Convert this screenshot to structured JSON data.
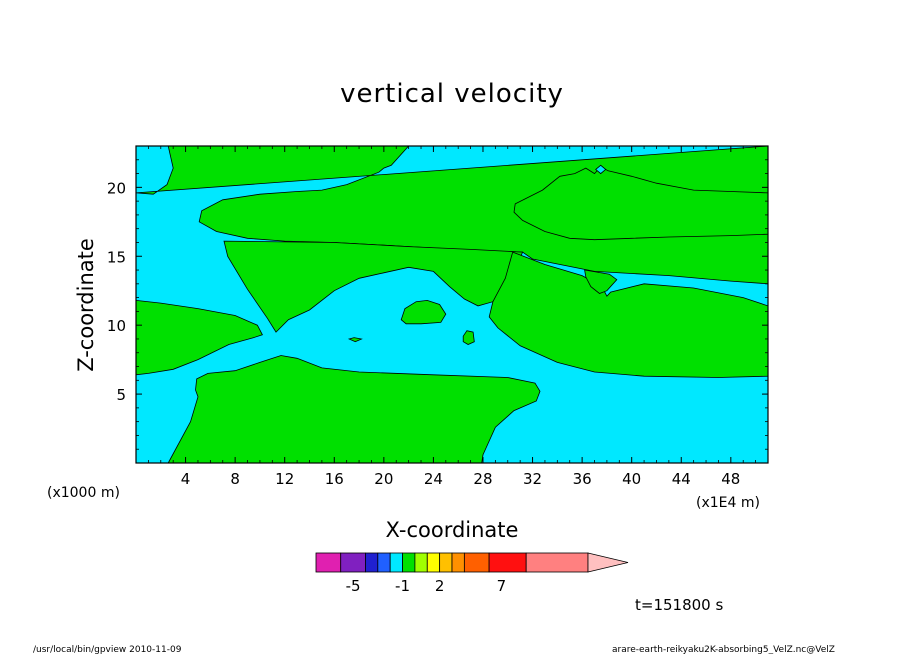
{
  "chart_data": {
    "type": "contour",
    "title": "vertical velocity",
    "xlabel": "X-coordinate",
    "ylabel": "Z-coordinate",
    "x_unit_left": "(x1000 m)",
    "x_unit_right": "(x1E4 m)",
    "xlim": [
      0,
      51
    ],
    "ylim": [
      0,
      23
    ],
    "x_ticks": [
      4,
      8,
      12,
      16,
      20,
      24,
      28,
      32,
      36,
      40,
      44,
      48
    ],
    "y_ticks": [
      5,
      10,
      15,
      20
    ],
    "time_label": "t=151800 s",
    "colorbar": {
      "tick_labels": [
        "-5",
        "-1",
        "2",
        "7"
      ],
      "tick_positions": [
        -5,
        -1,
        2,
        7
      ],
      "levels": [
        -8,
        -6,
        -4,
        -3,
        -2,
        -1,
        0,
        1,
        2,
        3,
        4,
        6,
        9,
        14
      ],
      "colors": [
        "#e020b0",
        "#8020c0",
        "#2020d0",
        "#2060ff",
        "#00e8ff",
        "#00e000",
        "#a0ff00",
        "#ffff00",
        "#ffc000",
        "#ff9000",
        "#ff6000",
        "#ff1010",
        "#ff8080",
        "#ffc0c0"
      ]
    },
    "fill_colors": {
      "negative": "#00e8ff",
      "positive": "#00e000"
    },
    "positive_regions": [
      {
        "name": "top-left",
        "points": [
          [
            0,
            19.6
          ],
          [
            1.4,
            19.5
          ],
          [
            2.5,
            20.2
          ],
          [
            3,
            21.4
          ],
          [
            2.6,
            23
          ],
          [
            22,
            23
          ],
          [
            20.6,
            21.6
          ],
          [
            20,
            21.4
          ],
          [
            19.6,
            21.1
          ],
          [
            17,
            20.2
          ],
          [
            15,
            19.8
          ],
          [
            13,
            19.7
          ],
          [
            10,
            19.5
          ],
          [
            7,
            19.1
          ],
          [
            5.3,
            18.3
          ],
          [
            5.1,
            17.5
          ],
          [
            6.5,
            16.8
          ],
          [
            9,
            16.3
          ],
          [
            12,
            16.1
          ],
          [
            16,
            16.0
          ],
          [
            22,
            15.7
          ],
          [
            28,
            15.4
          ],
          [
            31.2,
            15.3
          ],
          [
            32,
            14.8
          ],
          [
            37,
            13.9
          ],
          [
            43,
            13.6
          ],
          [
            48,
            13.2
          ],
          [
            51,
            13.0
          ],
          [
            51,
            23
          ]
        ]
      },
      {
        "name": "left-band",
        "points": [
          [
            0,
            11.8
          ],
          [
            2,
            11.6
          ],
          [
            5,
            11.2
          ],
          [
            8,
            10.7
          ],
          [
            9.8,
            10.0
          ],
          [
            10.2,
            9.3
          ],
          [
            9.5,
            9.1
          ],
          [
            7.5,
            8.6
          ],
          [
            5,
            7.5
          ],
          [
            3,
            6.8
          ],
          [
            1,
            6.5
          ],
          [
            0,
            6.4
          ]
        ]
      },
      {
        "name": "central-v",
        "points": [
          [
            7.1,
            16.1
          ],
          [
            7.4,
            15.0
          ],
          [
            9,
            12.6
          ],
          [
            10.6,
            10.5
          ],
          [
            11.3,
            9.5
          ],
          [
            12.3,
            10.4
          ],
          [
            14,
            11.1
          ],
          [
            16,
            12.5
          ],
          [
            18,
            13.4
          ],
          [
            20,
            13.8
          ],
          [
            22,
            14.2
          ],
          [
            24,
            13.9
          ],
          [
            25.3,
            12.8
          ],
          [
            26.5,
            11.9
          ],
          [
            27.6,
            11.4
          ],
          [
            28.8,
            11.7
          ],
          [
            30.4,
            13.6
          ],
          [
            31.2,
            15.3
          ],
          [
            27,
            15.5
          ],
          [
            22,
            15.7
          ],
          [
            16,
            16.0
          ]
        ]
      },
      {
        "name": "right-band",
        "points": [
          [
            30.4,
            15.3
          ],
          [
            33,
            14.4
          ],
          [
            36,
            13.6
          ],
          [
            37.6,
            12.8
          ],
          [
            38,
            12.1
          ],
          [
            38.3,
            12.4
          ],
          [
            41,
            13.0
          ],
          [
            45,
            12.7
          ],
          [
            49,
            12.0
          ],
          [
            51,
            11.4
          ],
          [
            51,
            6.3
          ],
          [
            47,
            6.2
          ],
          [
            41,
            6.3
          ],
          [
            37,
            6.6
          ],
          [
            34,
            7.3
          ],
          [
            31,
            8.5
          ],
          [
            29.2,
            9.8
          ],
          [
            28.5,
            10.6
          ],
          [
            28.8,
            11.7
          ],
          [
            29.8,
            13.4
          ]
        ]
      },
      {
        "name": "bottom",
        "points": [
          [
            2.6,
            0
          ],
          [
            4.4,
            3.0
          ],
          [
            5,
            4.8
          ],
          [
            4.8,
            5.3
          ],
          [
            4.9,
            6.1
          ],
          [
            5.8,
            6.5
          ],
          [
            8,
            6.7
          ],
          [
            10,
            7.3
          ],
          [
            11.7,
            7.8
          ],
          [
            13,
            7.6
          ],
          [
            15,
            6.9
          ],
          [
            18,
            6.6
          ],
          [
            24,
            6.4
          ],
          [
            30,
            6.2
          ],
          [
            32.2,
            5.8
          ],
          [
            32.6,
            5.2
          ],
          [
            32.3,
            4.5
          ],
          [
            30.5,
            3.8
          ],
          [
            29,
            2.6
          ],
          [
            28,
            0.6
          ],
          [
            27.9,
            0
          ]
        ]
      },
      {
        "name": "upper-right-band",
        "points": [
          [
            30.6,
            18.8
          ],
          [
            32.8,
            19.8
          ],
          [
            34.2,
            20.8
          ],
          [
            35.4,
            21.0
          ],
          [
            36.3,
            21.4
          ],
          [
            37,
            21.0
          ],
          [
            37.5,
            21.5
          ],
          [
            38.1,
            21.2
          ],
          [
            40,
            20.8
          ],
          [
            42,
            20.3
          ],
          [
            45,
            19.8
          ],
          [
            48,
            19.7
          ],
          [
            51,
            19.6
          ],
          [
            51,
            16.6
          ],
          [
            48,
            16.5
          ],
          [
            43,
            16.4
          ],
          [
            40,
            16.3
          ],
          [
            37,
            16.2
          ],
          [
            35,
            16.3
          ],
          [
            33,
            16.8
          ],
          [
            31.2,
            17.6
          ],
          [
            30.5,
            18.2
          ]
        ]
      },
      {
        "name": "blob-center",
        "points": [
          [
            21.4,
            10.4
          ],
          [
            21.7,
            11.2
          ],
          [
            22.6,
            11.7
          ],
          [
            23.5,
            11.8
          ],
          [
            24.5,
            11.5
          ],
          [
            25,
            10.8
          ],
          [
            24.6,
            10.2
          ],
          [
            23,
            10.1
          ],
          [
            21.8,
            10.1
          ]
        ]
      },
      {
        "name": "blob-small-1",
        "points": [
          [
            17.2,
            9.0
          ],
          [
            17.6,
            9.1
          ],
          [
            18.2,
            9.0
          ],
          [
            17.7,
            8.8
          ]
        ]
      },
      {
        "name": "blob-small-2",
        "points": [
          [
            26.4,
            9.2
          ],
          [
            26.7,
            9.6
          ],
          [
            27.2,
            9.5
          ],
          [
            27.3,
            8.8
          ],
          [
            26.8,
            8.6
          ],
          [
            26.4,
            8.8
          ]
        ]
      },
      {
        "name": "blob-v-right",
        "points": [
          [
            36.2,
            14.0
          ],
          [
            38.2,
            13.7
          ],
          [
            38.8,
            13.3
          ],
          [
            38.0,
            12.5
          ],
          [
            37.4,
            12.3
          ],
          [
            36.7,
            12.8
          ],
          [
            36.3,
            13.5
          ]
        ]
      }
    ],
    "negative_regions": [
      {
        "name": "top-hole",
        "points": [
          [
            37.1,
            21.3
          ],
          [
            37.5,
            21.6
          ],
          [
            37.9,
            21.3
          ],
          [
            37.5,
            21.0
          ]
        ]
      }
    ]
  },
  "footer": {
    "left": "/usr/local/bin/gpview   2010-11-09",
    "right": "arare-earth-reikyaku2K-absorbing5_VelZ.nc@VelZ"
  }
}
